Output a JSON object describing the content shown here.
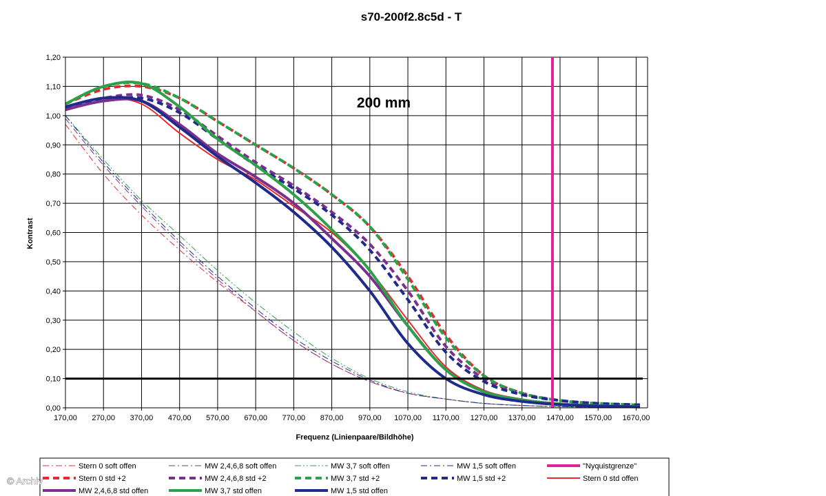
{
  "chart_data": {
    "type": "line",
    "title": "s70-200f2.8c5d - T",
    "xlabel": "Frequenz (Linienpaare/Bildhöhe)",
    "ylabel": "Kontrast",
    "xlim": [
      170,
      1700
    ],
    "ylim": [
      0,
      1.2
    ],
    "grid": true,
    "x_ticks": [
      "170,00",
      "270,00",
      "370,00",
      "470,00",
      "570,00",
      "670,00",
      "770,00",
      "870,00",
      "970,00",
      "1070,00",
      "1170,00",
      "1270,00",
      "1370,00",
      "1470,00",
      "1570,00",
      "1670,00"
    ],
    "y_ticks": [
      "0,00",
      "0,10",
      "0,20",
      "0,30",
      "0,40",
      "0,50",
      "0,60",
      "0,70",
      "0,80",
      "0,90",
      "1,00",
      "1,10",
      "1,20"
    ],
    "annotation": "200 mm",
    "reference_line_y": 0.1,
    "nyquist_x": 1450,
    "legend_position": "bottom",
    "series": [
      {
        "name": "Stern 0 soft offen",
        "color": "#e8282d",
        "style": "dashdot",
        "width": 1,
        "points": [
          [
            170,
            0.97
          ],
          [
            270,
            0.8
          ],
          [
            370,
            0.66
          ],
          [
            470,
            0.54
          ],
          [
            570,
            0.43
          ],
          [
            670,
            0.33
          ],
          [
            770,
            0.23
          ],
          [
            870,
            0.15
          ],
          [
            970,
            0.09
          ],
          [
            1070,
            0.05
          ],
          [
            1170,
            0.03
          ],
          [
            1270,
            0.015
          ],
          [
            1370,
            0.008
          ],
          [
            1470,
            0.004
          ],
          [
            1570,
            0.002
          ],
          [
            1680,
            0.001
          ]
        ]
      },
      {
        "name": "MW 2,4,6,8 soft offen",
        "color": "#7b2f8e",
        "style": "dashdot",
        "width": 1,
        "points": [
          [
            170,
            0.99
          ],
          [
            270,
            0.83
          ],
          [
            370,
            0.69
          ],
          [
            470,
            0.56
          ],
          [
            570,
            0.44
          ],
          [
            670,
            0.33
          ],
          [
            770,
            0.23
          ],
          [
            870,
            0.15
          ],
          [
            970,
            0.09
          ],
          [
            1070,
            0.05
          ],
          [
            1170,
            0.03
          ],
          [
            1270,
            0.015
          ],
          [
            1370,
            0.008
          ],
          [
            1470,
            0.004
          ],
          [
            1570,
            0.002
          ],
          [
            1680,
            0.001
          ]
        ]
      },
      {
        "name": "MW 3,7 soft offen",
        "color": "#2ca14a",
        "style": "dashdotdot",
        "width": 1,
        "points": [
          [
            170,
            1.0
          ],
          [
            270,
            0.85
          ],
          [
            370,
            0.71
          ],
          [
            470,
            0.59
          ],
          [
            570,
            0.47
          ],
          [
            670,
            0.36
          ],
          [
            770,
            0.26
          ],
          [
            870,
            0.17
          ],
          [
            970,
            0.1
          ],
          [
            1070,
            0.055
          ],
          [
            1170,
            0.03
          ],
          [
            1270,
            0.015
          ],
          [
            1370,
            0.008
          ],
          [
            1470,
            0.004
          ],
          [
            1570,
            0.002
          ],
          [
            1680,
            0.001
          ]
        ]
      },
      {
        "name": "MW 1,5 soft offen",
        "color": "#1f2a8a",
        "style": "dashdot",
        "width": 1,
        "points": [
          [
            170,
            1.0
          ],
          [
            270,
            0.84
          ],
          [
            370,
            0.7
          ],
          [
            470,
            0.57
          ],
          [
            570,
            0.45
          ],
          [
            670,
            0.34
          ],
          [
            770,
            0.24
          ],
          [
            870,
            0.16
          ],
          [
            970,
            0.095
          ],
          [
            1070,
            0.05
          ],
          [
            1170,
            0.03
          ],
          [
            1270,
            0.015
          ],
          [
            1370,
            0.008
          ],
          [
            1470,
            0.004
          ],
          [
            1570,
            0.002
          ],
          [
            1680,
            0.001
          ]
        ]
      },
      {
        "name": "\"Nyquistgrenze\"",
        "color": "#e0209a",
        "style": "solid",
        "width": 4,
        "points": []
      },
      {
        "name": "Stern 0 std +2",
        "color": "#e8282d",
        "style": "dash",
        "width": 4,
        "points": [
          [
            170,
            1.04
          ],
          [
            270,
            1.09
          ],
          [
            370,
            1.1
          ],
          [
            470,
            1.06
          ],
          [
            570,
            0.98
          ],
          [
            670,
            0.9
          ],
          [
            770,
            0.82
          ],
          [
            870,
            0.73
          ],
          [
            970,
            0.62
          ],
          [
            1070,
            0.45
          ],
          [
            1170,
            0.25
          ],
          [
            1270,
            0.11
          ],
          [
            1370,
            0.05
          ],
          [
            1470,
            0.025
          ],
          [
            1570,
            0.015
          ],
          [
            1680,
            0.01
          ]
        ]
      },
      {
        "name": "MW 2,4,6,8 std +2",
        "color": "#7b2f8e",
        "style": "dash",
        "width": 4,
        "points": [
          [
            170,
            1.03
          ],
          [
            270,
            1.06
          ],
          [
            370,
            1.07
          ],
          [
            470,
            1.02
          ],
          [
            570,
            0.93
          ],
          [
            670,
            0.84
          ],
          [
            770,
            0.76
          ],
          [
            870,
            0.67
          ],
          [
            970,
            0.56
          ],
          [
            1070,
            0.4
          ],
          [
            1170,
            0.21
          ],
          [
            1270,
            0.1
          ],
          [
            1370,
            0.05
          ],
          [
            1470,
            0.025
          ],
          [
            1570,
            0.015
          ],
          [
            1680,
            0.01
          ]
        ]
      },
      {
        "name": "MW 3,7 std +2",
        "color": "#2ca14a",
        "style": "dash",
        "width": 4,
        "points": [
          [
            170,
            1.04
          ],
          [
            270,
            1.1
          ],
          [
            370,
            1.11
          ],
          [
            470,
            1.06
          ],
          [
            570,
            0.98
          ],
          [
            670,
            0.9
          ],
          [
            770,
            0.82
          ],
          [
            870,
            0.73
          ],
          [
            970,
            0.62
          ],
          [
            1070,
            0.44
          ],
          [
            1170,
            0.24
          ],
          [
            1270,
            0.11
          ],
          [
            1370,
            0.05
          ],
          [
            1470,
            0.025
          ],
          [
            1570,
            0.015
          ],
          [
            1680,
            0.01
          ]
        ]
      },
      {
        "name": "MW 1,5 std +2",
        "color": "#1f2a8a",
        "style": "dash",
        "width": 4,
        "points": [
          [
            170,
            1.03
          ],
          [
            270,
            1.05
          ],
          [
            370,
            1.06
          ],
          [
            470,
            1.01
          ],
          [
            570,
            0.92
          ],
          [
            670,
            0.83
          ],
          [
            770,
            0.75
          ],
          [
            870,
            0.66
          ],
          [
            970,
            0.54
          ],
          [
            1070,
            0.37
          ],
          [
            1170,
            0.19
          ],
          [
            1270,
            0.09
          ],
          [
            1370,
            0.045
          ],
          [
            1470,
            0.025
          ],
          [
            1570,
            0.015
          ],
          [
            1680,
            0.01
          ]
        ]
      },
      {
        "name": "Stern 0 std offen",
        "color": "#e8282d",
        "style": "solid",
        "width": 2,
        "points": [
          [
            170,
            1.03
          ],
          [
            270,
            1.06
          ],
          [
            370,
            1.04
          ],
          [
            470,
            0.94
          ],
          [
            570,
            0.85
          ],
          [
            670,
            0.78
          ],
          [
            770,
            0.69
          ],
          [
            870,
            0.6
          ],
          [
            970,
            0.47
          ],
          [
            1070,
            0.3
          ],
          [
            1170,
            0.14
          ],
          [
            1270,
            0.06
          ],
          [
            1370,
            0.03
          ],
          [
            1470,
            0.015
          ],
          [
            1570,
            0.008
          ],
          [
            1680,
            0.005
          ]
        ]
      },
      {
        "name": "MW 2,4,6,8 std offen",
        "color": "#7b2f8e",
        "style": "solid",
        "width": 4,
        "points": [
          [
            170,
            1.02
          ],
          [
            270,
            1.05
          ],
          [
            370,
            1.05
          ],
          [
            470,
            0.97
          ],
          [
            570,
            0.87
          ],
          [
            670,
            0.79
          ],
          [
            770,
            0.7
          ],
          [
            870,
            0.58
          ],
          [
            970,
            0.45
          ],
          [
            1070,
            0.28
          ],
          [
            1170,
            0.13
          ],
          [
            1270,
            0.055
          ],
          [
            1370,
            0.027
          ],
          [
            1470,
            0.013
          ],
          [
            1570,
            0.007
          ],
          [
            1680,
            0.004
          ]
        ]
      },
      {
        "name": "MW 3,7 std offen",
        "color": "#2ca14a",
        "style": "solid",
        "width": 4,
        "points": [
          [
            170,
            1.04
          ],
          [
            270,
            1.1
          ],
          [
            370,
            1.11
          ],
          [
            470,
            1.03
          ],
          [
            570,
            0.92
          ],
          [
            670,
            0.83
          ],
          [
            770,
            0.73
          ],
          [
            870,
            0.61
          ],
          [
            970,
            0.47
          ],
          [
            1070,
            0.28
          ],
          [
            1170,
            0.13
          ],
          [
            1270,
            0.055
          ],
          [
            1370,
            0.027
          ],
          [
            1470,
            0.013
          ],
          [
            1570,
            0.007
          ],
          [
            1680,
            0.004
          ]
        ]
      },
      {
        "name": "MW 1,5 std offen",
        "color": "#1f2a8a",
        "style": "solid",
        "width": 4,
        "points": [
          [
            170,
            1.03
          ],
          [
            270,
            1.06
          ],
          [
            370,
            1.05
          ],
          [
            470,
            0.96
          ],
          [
            570,
            0.86
          ],
          [
            670,
            0.77
          ],
          [
            770,
            0.67
          ],
          [
            870,
            0.55
          ],
          [
            970,
            0.4
          ],
          [
            1070,
            0.22
          ],
          [
            1170,
            0.1
          ],
          [
            1270,
            0.045
          ],
          [
            1370,
            0.022
          ],
          [
            1470,
            0.011
          ],
          [
            1570,
            0.006
          ],
          [
            1680,
            0.003
          ]
        ]
      }
    ]
  },
  "watermark": "© Archiv"
}
